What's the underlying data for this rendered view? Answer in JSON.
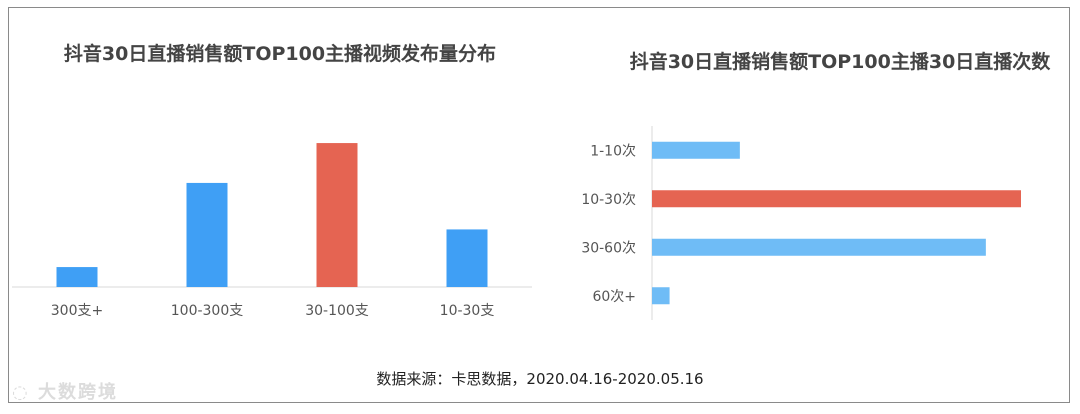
{
  "chart_data": [
    {
      "type": "bar",
      "title": "抖音30日直播销售额TOP100主播视频发布量分布",
      "categories": [
        "300支+",
        "100-300支",
        "30-100支",
        "10-30支"
      ],
      "values": [
        9,
        47,
        65,
        26
      ],
      "ylim": [
        0,
        70
      ],
      "grid": false,
      "colors": [
        "#3f9ff5",
        "#3f9ff5",
        "#e56452",
        "#3f9ff5"
      ]
    },
    {
      "type": "bar",
      "orientation": "horizontal",
      "title": "抖音30日直播销售额TOP100主播30日直播次数",
      "categories": [
        "1-10次",
        "10-30次",
        "30-60次",
        "60次+"
      ],
      "values": [
        10,
        42,
        38,
        2
      ],
      "xlim": [
        0,
        42
      ],
      "grid": false,
      "colors": [
        "#6fbcf6",
        "#e56452",
        "#6fbcf6",
        "#6fbcf6"
      ]
    }
  ],
  "source": "数据来源：卡思数据，2020.04.16-2020.05.16",
  "watermark": "大数跨境"
}
